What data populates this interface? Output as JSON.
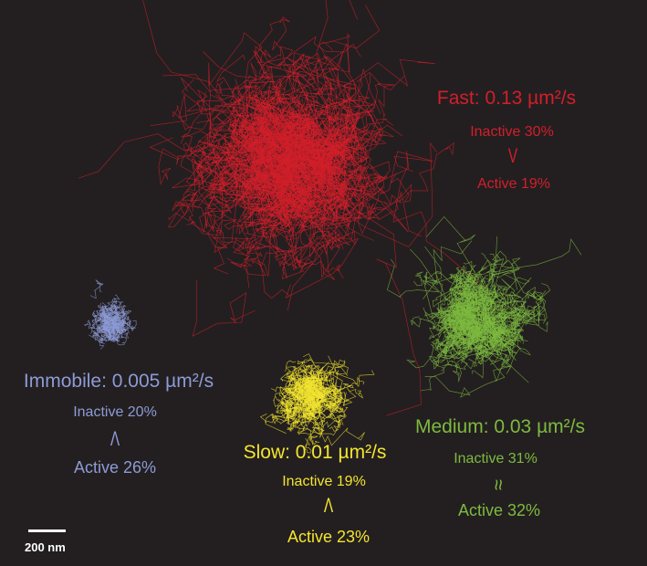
{
  "background": "#231f20",
  "populations": [
    {
      "id": "fast",
      "title": "Fast: 0.13 µm²/s",
      "inactive": "Inactive 30%",
      "relation": "V",
      "active": "Active 19%",
      "color": "#d21f2b"
    },
    {
      "id": "medium",
      "title": "Medium: 0.03 µm²/s",
      "inactive": "Inactive 31%",
      "relation": "≈",
      "active": "Active 32%",
      "color": "#7dba3f"
    },
    {
      "id": "slow",
      "title": "Slow: 0.01 µm²/s",
      "inactive": "Inactive 19%",
      "relation": "Λ",
      "active": "Active 23%",
      "color": "#f3e52f"
    },
    {
      "id": "immobile",
      "title": "Immobile: 0.005 µm²/s",
      "inactive": "Inactive 20%",
      "relation": "Λ",
      "active": "Active 26%",
      "color": "#8d9bd6"
    }
  ],
  "scale_bar": {
    "label": "200 nm",
    "color": "#ffffff"
  }
}
